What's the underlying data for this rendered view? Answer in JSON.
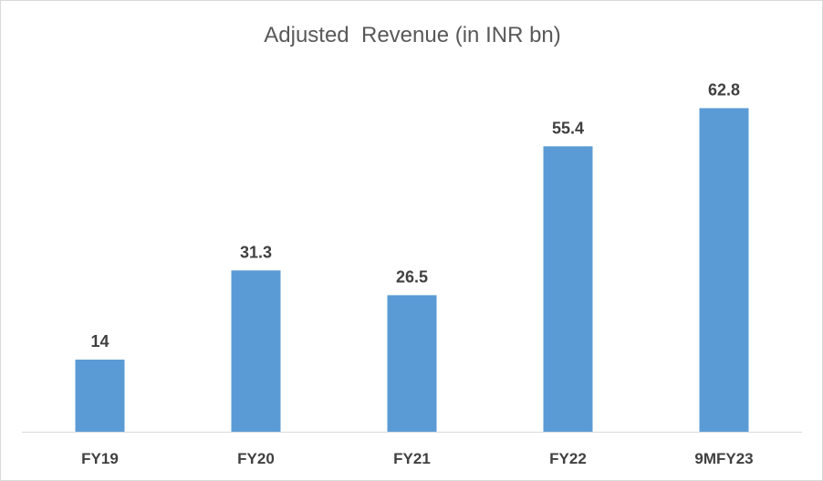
{
  "chart_data": {
    "type": "bar",
    "title": "Adjusted  Revenue (in INR bn)",
    "xlabel": "",
    "ylabel": "",
    "categories": [
      "FY19",
      "FY20",
      "FY21",
      "FY22",
      "9MFY23"
    ],
    "values": [
      14,
      31.3,
      26.5,
      55.4,
      62.8
    ],
    "value_labels": [
      "14",
      "31.3",
      "26.5",
      "55.4",
      "62.8"
    ],
    "ylim": [
      0,
      70
    ],
    "grid": false,
    "legend": "none",
    "bar_color": "#5B9BD5",
    "axis_color": "#d9d9d9",
    "text_color": "#404040",
    "title_color": "#595959"
  }
}
